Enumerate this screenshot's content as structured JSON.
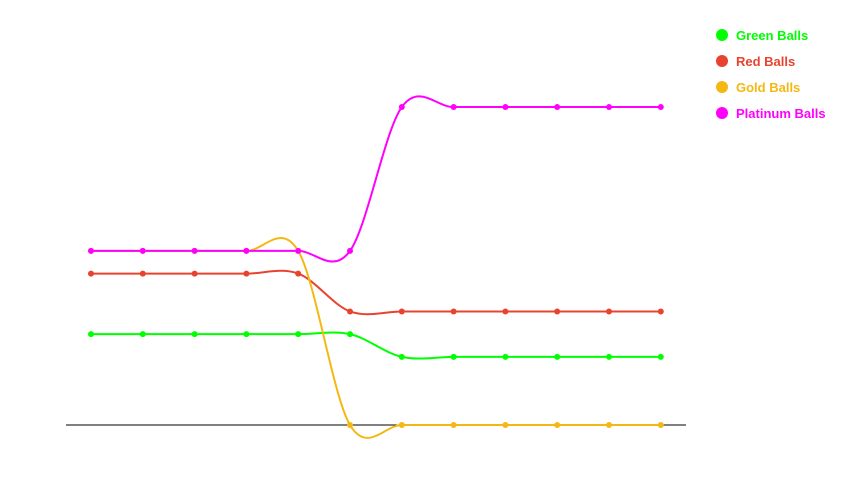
{
  "chart_data": {
    "type": "line",
    "title": "",
    "xlabel": "",
    "ylabel": "",
    "grid": false,
    "legend_position": "top-right",
    "x": [
      1,
      2,
      3,
      4,
      5,
      6,
      7,
      8,
      9,
      10,
      11,
      12
    ],
    "ylim": [
      0,
      5.6
    ],
    "series": [
      {
        "name": "Green Balls",
        "color": "#00ff00",
        "values": [
          1.2,
          1.2,
          1.2,
          1.2,
          1.2,
          1.2,
          0.9,
          0.9,
          0.9,
          0.9,
          0.9,
          0.9
        ]
      },
      {
        "name": "Red Balls",
        "color": "#e8432f",
        "values": [
          2.0,
          2.0,
          2.0,
          2.0,
          2.0,
          1.5,
          1.5,
          1.5,
          1.5,
          1.5,
          1.5,
          1.5
        ]
      },
      {
        "name": "Gold Balls",
        "color": "#f5b812",
        "values": [
          2.3,
          2.3,
          2.3,
          2.3,
          2.3,
          0.0,
          0.0,
          0.0,
          0.0,
          0.0,
          0.0,
          0.0
        ]
      },
      {
        "name": "Platinum Balls",
        "color": "#ff00ff",
        "values": [
          2.3,
          2.3,
          2.3,
          2.3,
          2.3,
          2.3,
          4.2,
          4.2,
          4.2,
          4.2,
          4.2,
          4.2
        ]
      }
    ]
  }
}
